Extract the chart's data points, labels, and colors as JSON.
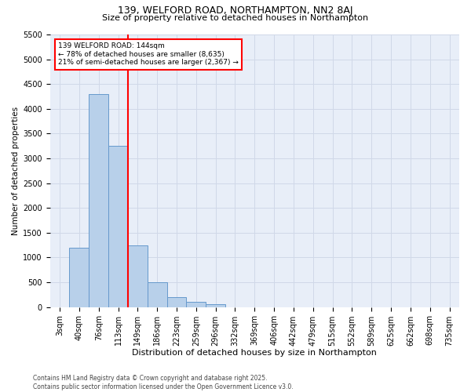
{
  "title": "139, WELFORD ROAD, NORTHAMPTON, NN2 8AJ",
  "subtitle": "Size of property relative to detached houses in Northampton",
  "xlabel": "Distribution of detached houses by size in Northampton",
  "ylabel": "Number of detached properties",
  "categories": [
    "3sqm",
    "40sqm",
    "76sqm",
    "113sqm",
    "149sqm",
    "186sqm",
    "223sqm",
    "259sqm",
    "296sqm",
    "332sqm",
    "369sqm",
    "406sqm",
    "442sqm",
    "479sqm",
    "515sqm",
    "552sqm",
    "589sqm",
    "625sqm",
    "662sqm",
    "698sqm",
    "735sqm"
  ],
  "bar_heights": [
    0,
    1200,
    4300,
    3250,
    1250,
    500,
    200,
    100,
    50,
    0,
    0,
    0,
    0,
    0,
    0,
    0,
    0,
    0,
    0,
    0,
    0
  ],
  "bar_color": "#b8d0ea",
  "bar_edge_color": "#6699cc",
  "vline_color": "red",
  "vline_pos": 3.5,
  "annotation_line1": "139 WELFORD ROAD: 144sqm",
  "annotation_line2": "← 78% of detached houses are smaller (8,635)",
  "annotation_line3": "21% of semi-detached houses are larger (2,367) →",
  "annotation_box_color": "white",
  "annotation_box_edge": "red",
  "ylim_max": 5500,
  "yticks": [
    0,
    500,
    1000,
    1500,
    2000,
    2500,
    3000,
    3500,
    4000,
    4500,
    5000,
    5500
  ],
  "plot_bg_color": "#e8eef8",
  "grid_color": "#d0d8e8",
  "footer1": "Contains HM Land Registry data © Crown copyright and database right 2025.",
  "footer2": "Contains public sector information licensed under the Open Government Licence v3.0.",
  "title_fontsize": 9,
  "subtitle_fontsize": 8,
  "xlabel_fontsize": 8,
  "ylabel_fontsize": 7.5,
  "tick_fontsize": 7,
  "annotation_fontsize": 6.5,
  "footer_fontsize": 5.5
}
